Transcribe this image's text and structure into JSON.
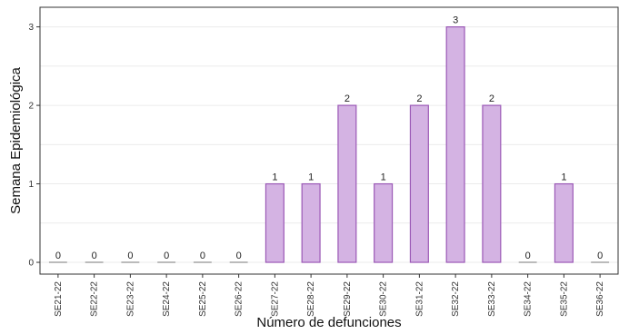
{
  "chart_data": {
    "type": "bar",
    "title": "",
    "xlabel": "Número de defunciones",
    "ylabel": "Semana Epidemiológica",
    "categories": [
      "SE21-22",
      "SE22-22",
      "SE23-22",
      "SE24-22",
      "SE25-22",
      "SE26-22",
      "SE27-22",
      "SE28-22",
      "SE29-22",
      "SE30-22",
      "SE31-22",
      "SE32-22",
      "SE33-22",
      "SE34-22",
      "SE35-22",
      "SE36-22"
    ],
    "values": [
      0,
      0,
      0,
      0,
      0,
      0,
      1,
      1,
      2,
      1,
      2,
      3,
      2,
      0,
      1,
      0
    ],
    "value_labels": [
      "0",
      "0",
      "0",
      "0",
      "0",
      "0",
      "1",
      "1",
      "2",
      "1",
      "2",
      "3",
      "2",
      "0",
      "1",
      "0"
    ],
    "yticks": [
      0,
      1,
      2,
      3
    ],
    "ylim": [
      -0.15,
      3.25
    ],
    "grid": true,
    "legend": "none",
    "colors": {
      "bar_fill": "#d4b3e3",
      "bar_stroke": "#9b59b6",
      "grid": "#ebebeb",
      "panel_border": "#333333"
    }
  }
}
